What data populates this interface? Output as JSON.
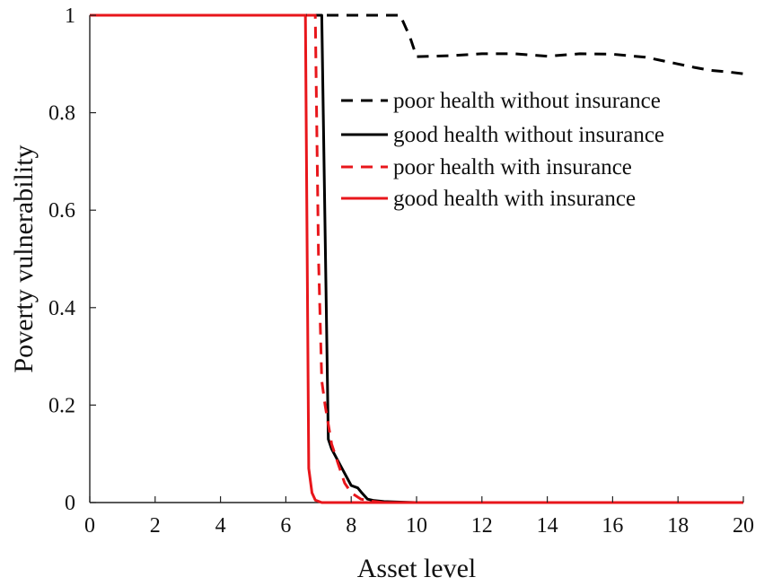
{
  "chart_data": {
    "type": "line",
    "title": "",
    "xlabel": "Asset level",
    "ylabel": "Poverty vulnerability",
    "xlim": [
      0,
      20
    ],
    "ylim": [
      0,
      1
    ],
    "xticks": [
      "0",
      "2",
      "4",
      "6",
      "8",
      "10",
      "12",
      "14",
      "16",
      "18",
      "20"
    ],
    "yticks": [
      "0",
      "0.2",
      "0.4",
      "0.6",
      "0.8",
      "1"
    ],
    "grid": false,
    "legend_position": "top-right",
    "series": [
      {
        "name": "poor health without insurance",
        "color": "#000000",
        "dash": "dashed",
        "x": [
          0,
          9.5,
          9.8,
          10.0,
          11.0,
          12.0,
          13.0,
          14.0,
          15.0,
          16.0,
          16.5,
          17.0,
          17.5,
          18.0,
          18.5,
          19.0,
          19.5,
          20.0
        ],
        "y": [
          1.0,
          1.0,
          0.955,
          0.915,
          0.917,
          0.921,
          0.921,
          0.916,
          0.921,
          0.92,
          0.917,
          0.914,
          0.907,
          0.9,
          0.893,
          0.887,
          0.884,
          0.88
        ]
      },
      {
        "name": "good health without insurance",
        "color": "#000000",
        "dash": "solid",
        "x": [
          0,
          7.1,
          7.3,
          7.4,
          7.6,
          7.8,
          8.0,
          8.2,
          8.3,
          8.5,
          8.7,
          9.0,
          9.5,
          10.0,
          20.0
        ],
        "y": [
          1.0,
          1.0,
          0.13,
          0.11,
          0.085,
          0.06,
          0.035,
          0.03,
          0.022,
          0.007,
          0.004,
          0.002,
          0.001,
          0.0,
          0.0
        ]
      },
      {
        "name": "poor health with insurance",
        "color": "#e8161b",
        "dash": "dashed",
        "x": [
          0,
          6.9,
          7.0,
          7.1,
          7.2,
          7.4,
          7.6,
          7.8,
          8.0,
          8.3,
          8.6,
          9.0,
          20.0
        ],
        "y": [
          1.0,
          1.0,
          0.5,
          0.25,
          0.2,
          0.12,
          0.08,
          0.04,
          0.02,
          0.007,
          0.003,
          0.0,
          0.0
        ]
      },
      {
        "name": "good health with insurance",
        "color": "#e8161b",
        "dash": "solid",
        "x": [
          0,
          6.6,
          6.7,
          6.8,
          6.9,
          7.1,
          20.0
        ],
        "y": [
          1.0,
          1.0,
          0.07,
          0.02,
          0.005,
          0.0,
          0.0
        ]
      }
    ]
  }
}
